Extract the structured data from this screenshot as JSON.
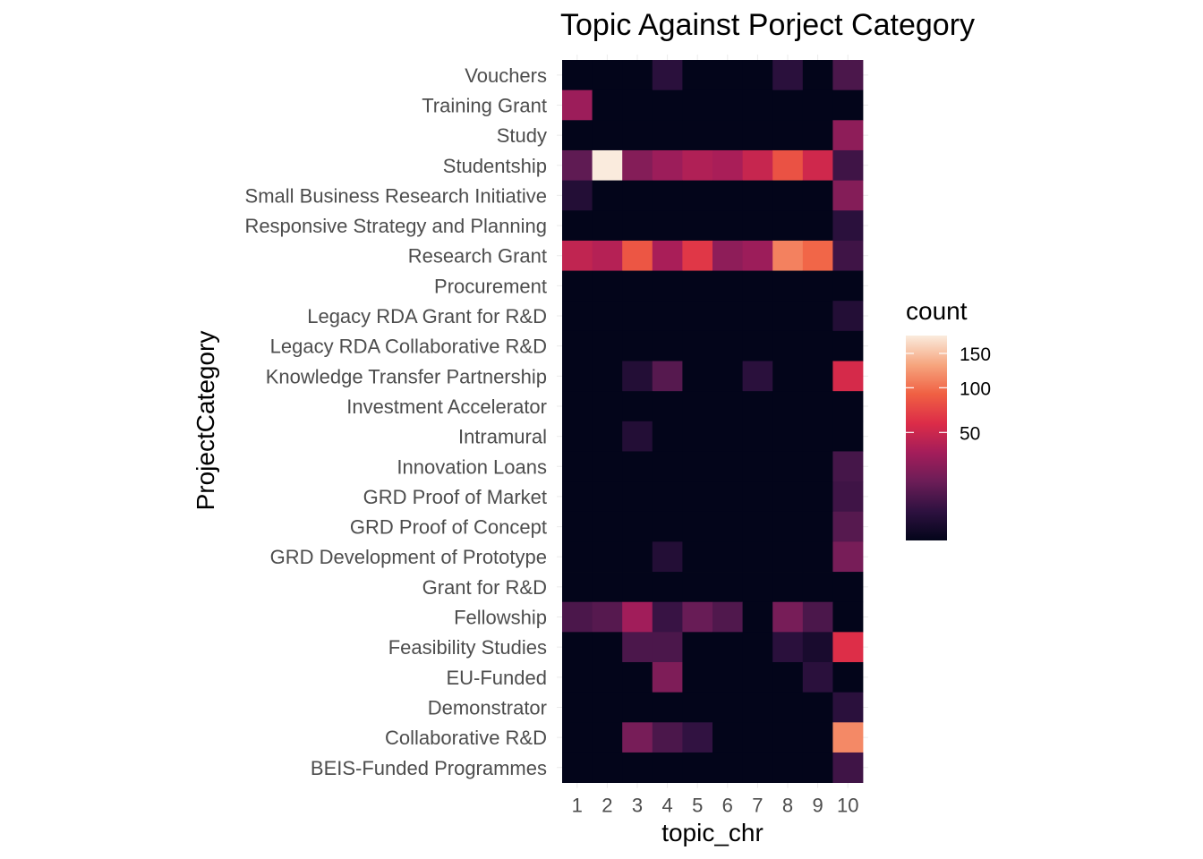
{
  "chart_data": {
    "type": "heatmap",
    "title": "Topic Against Porject Category",
    "xlabel": "topic_chr",
    "ylabel": "ProjectCategory",
    "x_categories": [
      "1",
      "2",
      "3",
      "4",
      "5",
      "6",
      "7",
      "8",
      "9",
      "10"
    ],
    "y_categories": [
      "Vouchers",
      "Training Grant",
      "Study",
      "Studentship",
      "Small Business Research Initiative",
      "Responsive Strategy and Planning",
      "Research Grant",
      "Procurement",
      "Legacy RDA Grant for R&D",
      "Legacy RDA Collaborative R&D",
      "Knowledge Transfer Partnership",
      "Investment Accelerator",
      "Intramural",
      "Innovation Loans",
      "GRD Proof of Market",
      "GRD Proof of Concept",
      "GRD Development of Prototype",
      "Grant for R&D",
      "Fellowship",
      "Feasibility Studies",
      "EU-Funded",
      "Demonstrator",
      "Collaborative R&D",
      "BEIS-Funded Programmes"
    ],
    "values": [
      [
        0,
        0,
        0,
        3,
        0,
        0,
        0,
        3,
        0,
        8
      ],
      [
        30,
        0,
        0,
        0,
        0,
        0,
        0,
        0,
        0,
        0
      ],
      [
        0,
        0,
        0,
        0,
        0,
        0,
        0,
        0,
        0,
        25
      ],
      [
        12,
        180,
        22,
        30,
        38,
        35,
        48,
        82,
        52,
        6
      ],
      [
        2,
        0,
        0,
        0,
        0,
        0,
        0,
        0,
        0,
        22
      ],
      [
        0,
        0,
        0,
        0,
        0,
        0,
        0,
        0,
        0,
        3
      ],
      [
        45,
        40,
        85,
        35,
        65,
        25,
        30,
        110,
        95,
        6
      ],
      [
        0,
        0,
        0,
        0,
        0,
        0,
        0,
        0,
        0,
        0
      ],
      [
        0,
        0,
        0,
        0,
        0,
        0,
        0,
        0,
        0,
        2
      ],
      [
        0,
        0,
        0,
        0,
        0,
        0,
        0,
        0,
        0,
        0
      ],
      [
        0,
        0,
        2,
        10,
        0,
        0,
        3,
        0,
        0,
        55
      ],
      [
        0,
        0,
        0,
        0,
        0,
        0,
        0,
        0,
        0,
        0
      ],
      [
        0,
        0,
        2,
        0,
        0,
        0,
        0,
        0,
        0,
        0
      ],
      [
        0,
        0,
        0,
        0,
        0,
        0,
        0,
        0,
        0,
        7
      ],
      [
        0,
        0,
        0,
        0,
        0,
        0,
        0,
        0,
        0,
        6
      ],
      [
        0,
        0,
        0,
        0,
        0,
        0,
        0,
        0,
        0,
        10
      ],
      [
        0,
        0,
        0,
        2,
        0,
        0,
        0,
        0,
        0,
        18
      ],
      [
        0,
        0,
        0,
        0,
        0,
        0,
        0,
        0,
        0,
        0
      ],
      [
        8,
        10,
        32,
        5,
        14,
        9,
        0,
        18,
        8,
        0
      ],
      [
        0,
        0,
        8,
        8,
        0,
        0,
        0,
        3,
        1,
        60
      ],
      [
        0,
        0,
        0,
        20,
        0,
        0,
        0,
        0,
        3,
        0
      ],
      [
        0,
        0,
        0,
        0,
        0,
        0,
        0,
        0,
        0,
        3
      ],
      [
        0,
        0,
        18,
        8,
        4,
        0,
        0,
        0,
        0,
        115
      ],
      [
        0,
        0,
        0,
        0,
        0,
        0,
        0,
        0,
        0,
        6
      ]
    ],
    "legend": {
      "title": "count",
      "position": "right",
      "ticks": [
        50,
        100,
        150
      ],
      "range": [
        0,
        180
      ],
      "scale": "sqrt"
    },
    "colormap": [
      "#03051a",
      "#2e1140",
      "#6b1d57",
      "#a41d5a",
      "#dc2c48",
      "#f06043",
      "#f6a57e",
      "#faebdd"
    ],
    "grid": false
  }
}
